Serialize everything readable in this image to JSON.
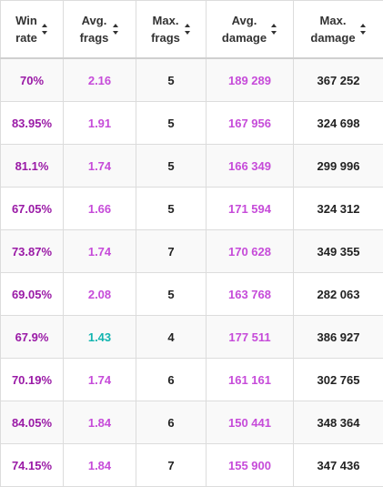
{
  "colors": {
    "win_rate": "#9a1aa6",
    "purple_stat": "#c64bd9",
    "teal_stat": "#12b5b0",
    "plain": "#222222"
  },
  "headers": [
    {
      "line1": "Win",
      "line2": "rate",
      "icon": "sort-icon"
    },
    {
      "line1": "Avg.",
      "line2": "frags",
      "icon": "sort-icon"
    },
    {
      "line1": "Max.",
      "line2": "frags",
      "icon": "sort-icon"
    },
    {
      "line1": "Avg.",
      "line2": "damage",
      "icon": "sort-icon"
    },
    {
      "line1": "Max.",
      "line2": "damage",
      "icon": "sort-icon"
    }
  ],
  "rows": [
    {
      "win_rate": "70%",
      "avg_frags": "2.16",
      "avg_frags_color": "purple",
      "max_frags": "5",
      "avg_damage": "189 289",
      "max_damage": "367 252"
    },
    {
      "win_rate": "83.95%",
      "avg_frags": "1.91",
      "avg_frags_color": "purple",
      "max_frags": "5",
      "avg_damage": "167 956",
      "max_damage": "324 698"
    },
    {
      "win_rate": "81.1%",
      "avg_frags": "1.74",
      "avg_frags_color": "purple",
      "max_frags": "5",
      "avg_damage": "166 349",
      "max_damage": "299 996"
    },
    {
      "win_rate": "67.05%",
      "avg_frags": "1.66",
      "avg_frags_color": "purple",
      "max_frags": "5",
      "avg_damage": "171 594",
      "max_damage": "324 312"
    },
    {
      "win_rate": "73.87%",
      "avg_frags": "1.74",
      "avg_frags_color": "purple",
      "max_frags": "7",
      "avg_damage": "170 628",
      "max_damage": "349 355"
    },
    {
      "win_rate": "69.05%",
      "avg_frags": "2.08",
      "avg_frags_color": "purple",
      "max_frags": "5",
      "avg_damage": "163 768",
      "max_damage": "282 063"
    },
    {
      "win_rate": "67.9%",
      "avg_frags": "1.43",
      "avg_frags_color": "teal",
      "max_frags": "4",
      "avg_damage": "177 511",
      "max_damage": "386 927"
    },
    {
      "win_rate": "70.19%",
      "avg_frags": "1.74",
      "avg_frags_color": "purple",
      "max_frags": "6",
      "avg_damage": "161 161",
      "max_damage": "302 765"
    },
    {
      "win_rate": "84.05%",
      "avg_frags": "1.84",
      "avg_frags_color": "purple",
      "max_frags": "6",
      "avg_damage": "150 441",
      "max_damage": "348 364"
    },
    {
      "win_rate": "74.15%",
      "avg_frags": "1.84",
      "avg_frags_color": "purple",
      "max_frags": "7",
      "avg_damage": "155 900",
      "max_damage": "347 436"
    }
  ]
}
